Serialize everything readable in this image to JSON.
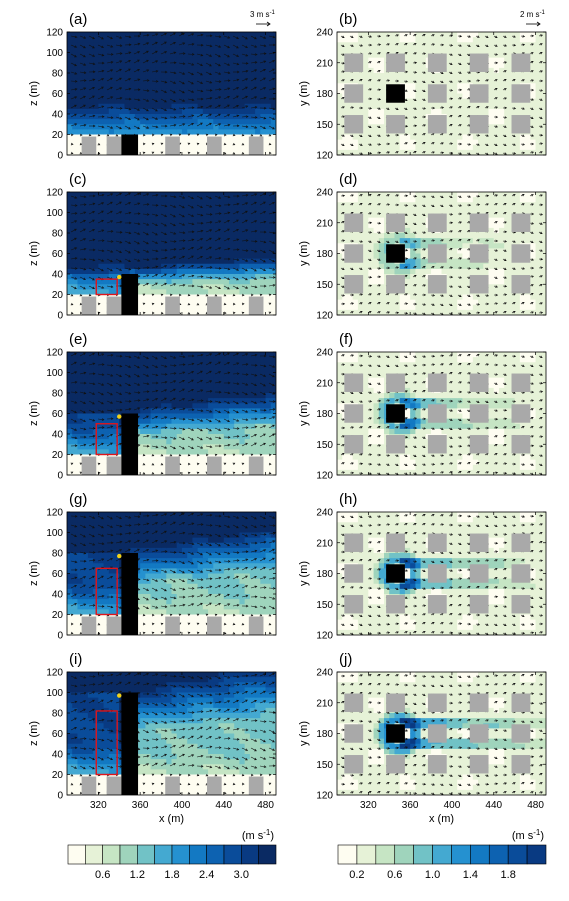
{
  "colors": {
    "building": "#a9a9a9",
    "tower": "#000000",
    "box": "#e0151b",
    "marker": "#f2d21a",
    "arrow": "#111111"
  },
  "panels": [
    {
      "label": "(a)",
      "type": "side",
      "tower_height": 20,
      "wake": 0.0,
      "box_top": null
    },
    {
      "label": "(b)",
      "type": "plan",
      "tower_height": 20,
      "wake": 0.0
    },
    {
      "label": "(c)",
      "type": "side",
      "tower_height": 40,
      "wake": 0.35,
      "box_top": 35
    },
    {
      "label": "(d)",
      "type": "plan",
      "tower_height": 40,
      "wake": 0.45
    },
    {
      "label": "(e)",
      "type": "side",
      "tower_height": 60,
      "wake": 0.55,
      "box_top": 50
    },
    {
      "label": "(f)",
      "type": "plan",
      "tower_height": 60,
      "wake": 0.65
    },
    {
      "label": "(g)",
      "type": "side",
      "tower_height": 80,
      "wake": 0.75,
      "box_top": 65
    },
    {
      "label": "(h)",
      "type": "plan",
      "tower_height": 80,
      "wake": 0.8
    },
    {
      "label": "(i)",
      "type": "side",
      "tower_height": 100,
      "wake": 0.9,
      "box_top": 82
    },
    {
      "label": "(j)",
      "type": "plan",
      "tower_height": 100,
      "wake": 0.95
    }
  ],
  "chart_data": [
    {
      "type": "heatmap",
      "panel_set": "side view (a, c, e, g, i)",
      "xlabel": "x (m)",
      "ylabel": "z (m)",
      "xlim": [
        290,
        490
      ],
      "ylim": [
        0,
        120
      ],
      "x_ticks": [
        320,
        360,
        400,
        440,
        480
      ],
      "y_ticks": [
        0,
        20,
        40,
        60,
        80,
        100,
        120
      ],
      "reference_vector": {
        "text": "3 m s",
        "exp": "-1",
        "speed": 3
      },
      "colorbar": {
        "unit": "(m s",
        "unit_exp": "-1",
        "unit_close": ")",
        "levels": 12,
        "tick_labels": [
          "0.6",
          "1.2",
          "1.8",
          "2.4",
          "3.0"
        ],
        "tick_positions": [
          2,
          4,
          6,
          8,
          10
        ],
        "colors": [
          "#fefdf1",
          "#e6f2d7",
          "#c6e5c4",
          "#9fd4bc",
          "#71c2c6",
          "#44a9d1",
          "#2591d0",
          "#1379c3",
          "#0d62b1",
          "#0a4c9a",
          "#093a82",
          "#0a2a63"
        ]
      }
    },
    {
      "type": "heatmap",
      "panel_set": "plan view (b, d, f, h, j)",
      "xlabel": "x (m)",
      "ylabel": "y (m)",
      "xlim": [
        290,
        490
      ],
      "ylim": [
        120,
        240
      ],
      "x_ticks": [
        320,
        360,
        400,
        440,
        480
      ],
      "y_ticks": [
        120,
        150,
        180,
        210,
        240
      ],
      "reference_vector": {
        "text": "2 m s",
        "exp": "-1",
        "speed": 2
      },
      "colorbar": {
        "unit": "(m s",
        "unit_exp": "-1",
        "unit_close": ")",
        "levels": 11,
        "tick_labels": [
          "0.2",
          "0.6",
          "1.0",
          "1.4",
          "1.8"
        ],
        "tick_positions": [
          1,
          3,
          5,
          7,
          9
        ],
        "colors": [
          "#fefdf1",
          "#e6f2d7",
          "#c6e5c4",
          "#9fd4bc",
          "#71c2c6",
          "#44a9d1",
          "#2591d0",
          "#1379c3",
          "#0d62b1",
          "#0a4c9a",
          "#093a82"
        ]
      }
    }
  ]
}
